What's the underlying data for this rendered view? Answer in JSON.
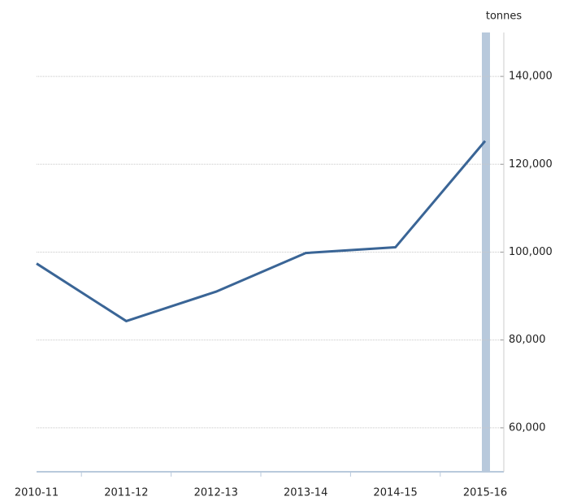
{
  "chart_data": {
    "type": "line",
    "y_label": "tonnes",
    "categories": [
      "2010-11",
      "2011-12",
      "2012-13",
      "2013-14",
      "2014-15",
      "2015-16"
    ],
    "series": [
      {
        "name": "tonnes",
        "color": "#3a6596",
        "values": [
          97400,
          84300,
          91000,
          99800,
          101100,
          125300
        ]
      }
    ],
    "ylim": [
      50000,
      150000
    ],
    "yticks": [
      {
        "value": 60000,
        "label": "60,000"
      },
      {
        "value": 80000,
        "label": "80,000"
      },
      {
        "value": 100000,
        "label": "100,000"
      },
      {
        "value": 120000,
        "label": "120,000"
      },
      {
        "value": 140000,
        "label": "140,000"
      }
    ],
    "grid": true
  }
}
